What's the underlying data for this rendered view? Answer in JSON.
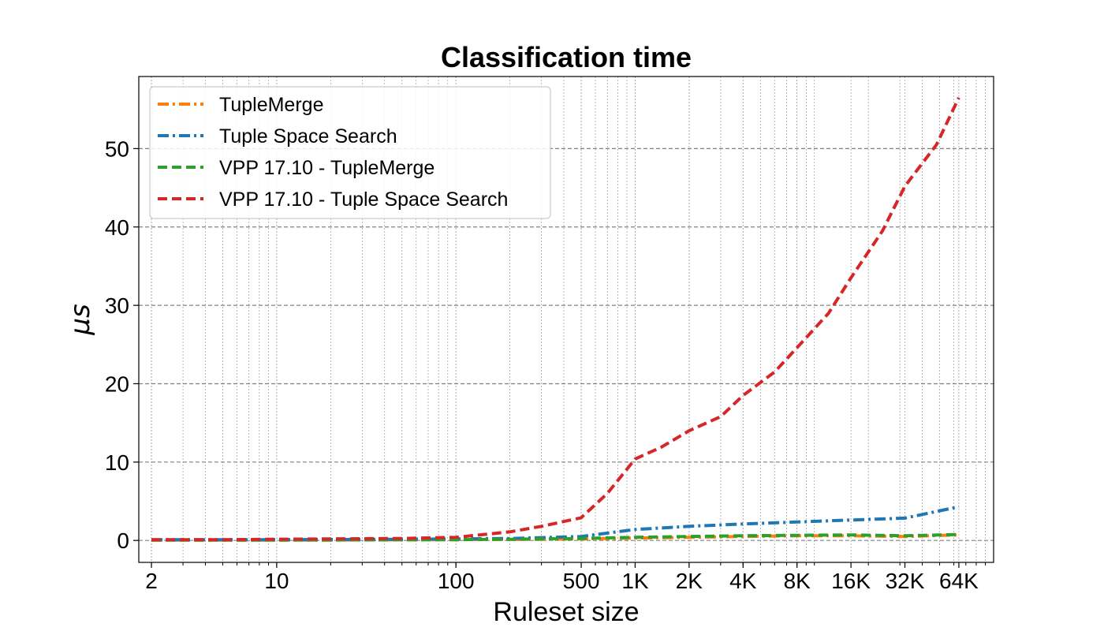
{
  "chart_data": {
    "type": "line",
    "title": "Classification time",
    "xlabel": "Ruleset size",
    "ylabel": "μs",
    "x_scale": "log",
    "xlim": [
      1.7,
      100000
    ],
    "ylim": [
      -2.8,
      59.2
    ],
    "grid": true,
    "legend_position": "top-left",
    "x_ticks": [
      {
        "value": 2,
        "label": "2"
      },
      {
        "value": 10,
        "label": "10"
      },
      {
        "value": 100,
        "label": "100"
      },
      {
        "value": 500,
        "label": "500"
      },
      {
        "value": 1000,
        "label": "1K"
      },
      {
        "value": 2000,
        "label": "2K"
      },
      {
        "value": 4000,
        "label": "4K"
      },
      {
        "value": 8000,
        "label": "8K"
      },
      {
        "value": 16000,
        "label": "16K"
      },
      {
        "value": 32000,
        "label": "32K"
      },
      {
        "value": 64000,
        "label": "64K"
      }
    ],
    "y_ticks": [
      {
        "value": 0,
        "label": "0"
      },
      {
        "value": 10,
        "label": "10"
      },
      {
        "value": 20,
        "label": "20"
      },
      {
        "value": 30,
        "label": "30"
      },
      {
        "value": 40,
        "label": "40"
      },
      {
        "value": 50,
        "label": "50"
      }
    ],
    "series": [
      {
        "name": "TupleMerge",
        "color": "#ff7f0e",
        "style": "dashdot",
        "points": [
          [
            2,
            0.05
          ],
          [
            5,
            0.05
          ],
          [
            10,
            0.05
          ],
          [
            20,
            0.05
          ],
          [
            50,
            0.08
          ],
          [
            100,
            0.1
          ],
          [
            200,
            0.12
          ],
          [
            500,
            0.2
          ],
          [
            1000,
            0.3
          ],
          [
            2000,
            0.4
          ],
          [
            4000,
            0.5
          ],
          [
            8000,
            0.6
          ],
          [
            16000,
            0.6
          ],
          [
            32000,
            0.5
          ],
          [
            64000,
            0.7
          ]
        ]
      },
      {
        "name": "Tuple Space Search",
        "color": "#1f77b4",
        "style": "dashdot",
        "points": [
          [
            2,
            0.1
          ],
          [
            5,
            0.1
          ],
          [
            10,
            0.1
          ],
          [
            20,
            0.12
          ],
          [
            50,
            0.15
          ],
          [
            100,
            0.2
          ],
          [
            200,
            0.25
          ],
          [
            500,
            0.5
          ],
          [
            1000,
            1.4
          ],
          [
            2000,
            1.8
          ],
          [
            4000,
            2.1
          ],
          [
            8000,
            2.35
          ],
          [
            16000,
            2.6
          ],
          [
            32000,
            2.85
          ],
          [
            64000,
            4.3
          ]
        ]
      },
      {
        "name": "VPP 17.10 - TupleMerge",
        "color": "#2ca02c",
        "style": "dashed",
        "points": [
          [
            2,
            0.05
          ],
          [
            5,
            0.05
          ],
          [
            10,
            0.05
          ],
          [
            20,
            0.06
          ],
          [
            50,
            0.08
          ],
          [
            100,
            0.1
          ],
          [
            200,
            0.15
          ],
          [
            500,
            0.25
          ],
          [
            1000,
            0.4
          ],
          [
            2000,
            0.5
          ],
          [
            4000,
            0.6
          ],
          [
            8000,
            0.65
          ],
          [
            16000,
            0.7
          ],
          [
            32000,
            0.6
          ],
          [
            64000,
            0.75
          ]
        ]
      },
      {
        "name": "VPP 17.10 - Tuple Space Search",
        "color": "#d62728",
        "style": "dashed",
        "points": [
          [
            2,
            0.1
          ],
          [
            5,
            0.1
          ],
          [
            10,
            0.15
          ],
          [
            20,
            0.2
          ],
          [
            50,
            0.25
          ],
          [
            100,
            0.4
          ],
          [
            200,
            1.1
          ],
          [
            300,
            1.8
          ],
          [
            500,
            2.9
          ],
          [
            700,
            6
          ],
          [
            1000,
            10.4
          ],
          [
            1400,
            11.9
          ],
          [
            2000,
            14
          ],
          [
            3000,
            15.8
          ],
          [
            4000,
            18.5
          ],
          [
            6000,
            21.5
          ],
          [
            8000,
            24.6
          ],
          [
            12000,
            29
          ],
          [
            16000,
            33.5
          ],
          [
            24000,
            39.5
          ],
          [
            32000,
            45.2
          ],
          [
            48000,
            50.5
          ],
          [
            64000,
            56.5
          ]
        ]
      }
    ]
  }
}
